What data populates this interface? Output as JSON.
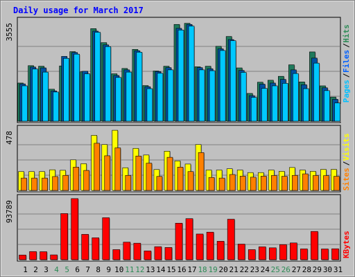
{
  "chart_data": {
    "type": "bar",
    "title": "Daily usage for March 2017",
    "categories": [
      "1",
      "2",
      "3",
      "4",
      "5",
      "6",
      "7",
      "8",
      "9",
      "10",
      "11",
      "12",
      "13",
      "14",
      "15",
      "16",
      "17",
      "18",
      "19",
      "20",
      "21",
      "22",
      "23",
      "24",
      "25",
      "26",
      "27",
      "28",
      "29",
      "30",
      "31"
    ],
    "weekend_days": [
      "4",
      "5",
      "11",
      "12",
      "18",
      "19",
      "25",
      "26"
    ],
    "panels": [
      {
        "name": "hits-files-pages",
        "ymax": 3555,
        "ymax_label": "3555",
        "legend": [
          "Pages",
          "Files",
          "Hits"
        ],
        "legend_colors": [
          "#00c0ff",
          "#0060ff",
          "#2e8b57"
        ],
        "series": [
          {
            "name": "Hits",
            "color": "#1f7a5c",
            "values": [
              1360,
              1980,
              1960,
              1140,
              1970,
              2480,
              1760,
              3300,
              2800,
              1690,
              1880,
              2560,
              1270,
              1790,
              1960,
              3450,
              3490,
              1940,
              1960,
              2670,
              3020,
              1900,
              990,
              1390,
              1460,
              1600,
              2010,
              1400,
              2470,
              1260,
              860
            ]
          },
          {
            "name": "Files",
            "color": "#0050a0",
            "values": [
              1330,
              1930,
              1900,
              1080,
              2310,
              2450,
              1780,
              3210,
              2720,
              1630,
              1830,
              2510,
              1230,
              1770,
              1910,
              3310,
              3450,
              1910,
              1870,
              2580,
              2910,
              1810,
              910,
              1320,
              1360,
              1490,
              1830,
              1300,
              2250,
              1190,
              780
            ]
          },
          {
            "name": "Pages",
            "color": "#00c8ff",
            "values": [
              1260,
              1860,
              1750,
              1040,
              2240,
              2390,
              1690,
              3170,
              2660,
              1560,
              1750,
              2460,
              1160,
              1710,
              1830,
              3250,
              3390,
              1830,
              1800,
              2520,
              2870,
              1740,
              850,
              1170,
              1260,
              1350,
              1700,
              1160,
              2070,
              1090,
              650
            ]
          }
        ]
      },
      {
        "name": "visits-sites",
        "ymax": 478,
        "ymax_label": "478",
        "legend": [
          "Sites",
          "Visits"
        ],
        "legend_colors": [
          "#ff8000",
          "#ffff00"
        ],
        "series": [
          {
            "name": "Visits",
            "color": "#ffff00",
            "values": [
              148,
              148,
              148,
              162,
              158,
              240,
              210,
              432,
              360,
              472,
              178,
              330,
              278,
              164,
              308,
              232,
              207,
              360,
              160,
              160,
              170,
              160,
              140,
              140,
              160,
              150,
              180,
              160,
              150,
              165,
              165
            ]
          },
          {
            "name": "Sites",
            "color": "#ff8000",
            "values": [
              97,
              97,
              97,
              109,
              118,
              183,
              157,
              370,
              272,
              334,
              118,
              270,
              214,
              110,
              260,
              183,
              148,
              297,
              102,
              97,
              125,
              112,
              104,
              112,
              117,
              111,
              118,
              130,
              117,
              116,
              111
            ]
          }
        ]
      },
      {
        "name": "kbytes",
        "ymax": 93789,
        "ymax_label": "93789",
        "legend": [
          "KBytes"
        ],
        "legend_colors": [
          "#ff0000"
        ],
        "series": [
          {
            "name": "KBytes",
            "color": "#ff0000",
            "values": [
              7200,
              12500,
              12300,
              7400,
              71000,
              94000,
              39000,
              33700,
              64600,
              15500,
              27000,
              25400,
              13500,
              20000,
              18800,
              56200,
              63200,
              39500,
              42400,
              28400,
              62300,
              24000,
              15500,
              19800,
              18300,
              23200,
              25800,
              16600,
              43500,
              16500,
              16800
            ]
          }
        ]
      }
    ]
  }
}
